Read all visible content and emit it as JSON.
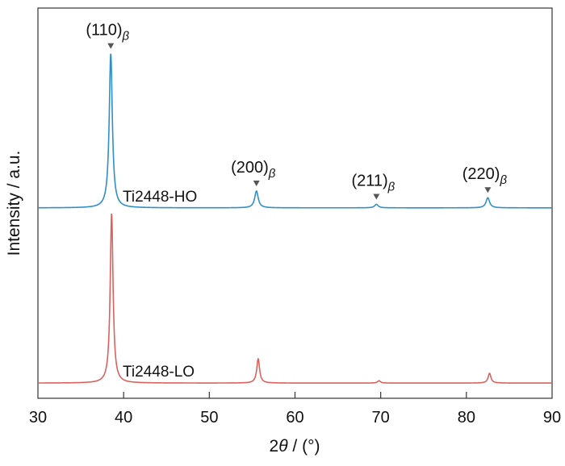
{
  "chart_data": {
    "type": "line",
    "title": "",
    "xlabel_prefix": "2",
    "xlabel_theta": "θ",
    "xlabel_suffix": " / (°)",
    "ylabel": "Intensity / a.u.",
    "xlim": [
      30,
      90
    ],
    "ylim": [
      0,
      100
    ],
    "xticks": [
      30,
      40,
      50,
      60,
      70,
      80,
      90
    ],
    "grid": false,
    "series": [
      {
        "name": "Ti2448-HO",
        "color": "#2f8fc6",
        "baseline": 48.8,
        "peaks": [
          {
            "x": 38.5,
            "height": 39.5,
            "width": 0.22
          },
          {
            "x": 55.5,
            "height": 4.3,
            "width": 0.25
          },
          {
            "x": 69.5,
            "height": 0.9,
            "width": 0.25
          },
          {
            "x": 82.5,
            "height": 2.6,
            "width": 0.25
          }
        ]
      },
      {
        "name": "Ti2448-LO",
        "color": "#d9625e",
        "baseline": 3.9,
        "peaks": [
          {
            "x": 38.6,
            "height": 43.4,
            "width": 0.2
          },
          {
            "x": 55.7,
            "height": 6.2,
            "width": 0.2
          },
          {
            "x": 69.8,
            "height": 0.6,
            "width": 0.2
          },
          {
            "x": 82.7,
            "height": 2.5,
            "width": 0.2
          }
        ]
      }
    ],
    "annotations": [
      {
        "label": "(110)",
        "sub": "β",
        "x": 38.5
      },
      {
        "label": "(200)",
        "sub": "β",
        "x": 55.5
      },
      {
        "label": "(211)",
        "sub": "β",
        "x": 69.5
      },
      {
        "label": "(220)",
        "sub": "β",
        "x": 82.5
      }
    ],
    "marker_color": "#555555"
  }
}
